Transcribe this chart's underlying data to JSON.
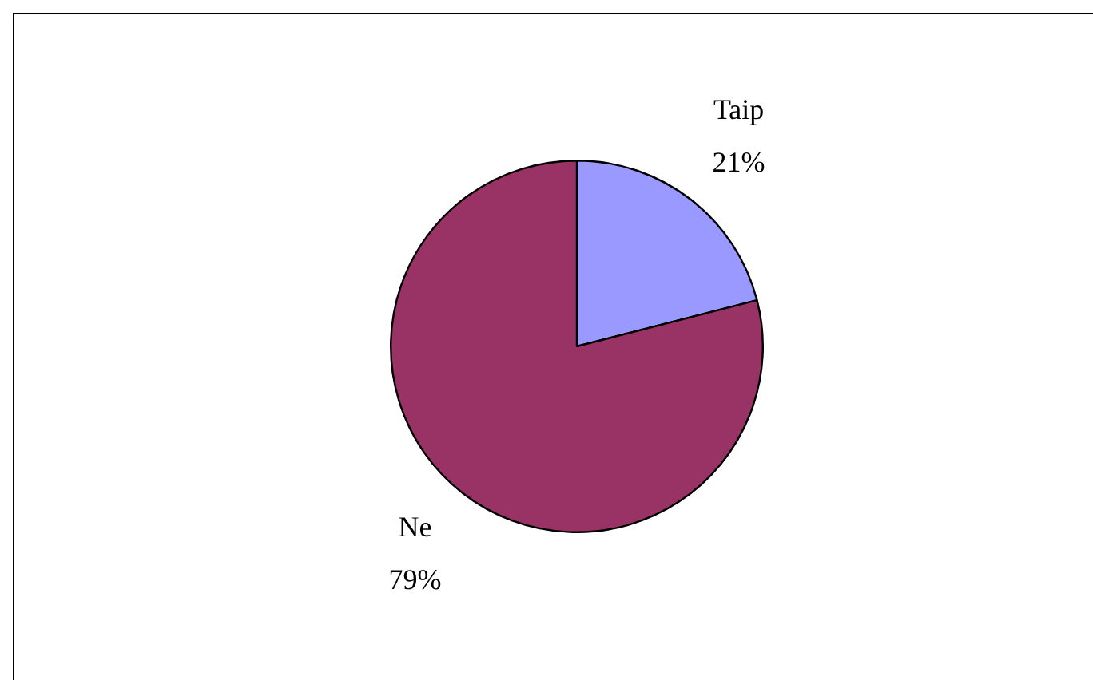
{
  "chart_data": {
    "type": "pie",
    "categories": [
      "Taip",
      "Ne"
    ],
    "values": [
      21,
      79
    ],
    "value_labels": [
      "21%",
      "79%"
    ],
    "colors": [
      "#9999ff",
      "#993366"
    ],
    "legend": false
  }
}
